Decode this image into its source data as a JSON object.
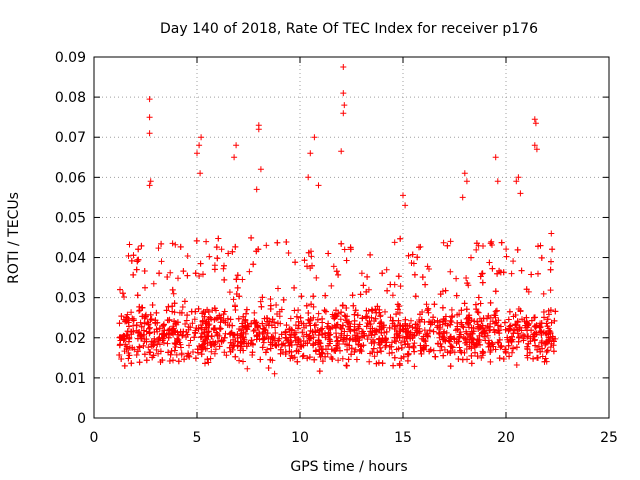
{
  "chart_data": {
    "type": "scatter",
    "title": "Day 140 of 2018, Rate Of TEC Index for receiver p176",
    "xlabel": "GPS time / hours",
    "ylabel": "ROTI / TECUs",
    "xlim": [
      0,
      25
    ],
    "ylim": [
      0,
      0.09
    ],
    "xticks": [
      0,
      5,
      10,
      15,
      20,
      25
    ],
    "yticks": [
      0,
      0.01,
      0.02,
      0.03,
      0.04,
      0.05,
      0.06,
      0.07,
      0.08,
      0.09
    ],
    "xtick_labels": [
      "0",
      "5",
      "10",
      "15",
      "20",
      "25"
    ],
    "ytick_labels": [
      "0",
      "0.01",
      "0.02",
      "0.03",
      "0.04",
      "0.05",
      "0.06",
      "0.07",
      "0.08",
      "0.09"
    ],
    "grid": true,
    "marker": "+",
    "color": "#ff0000",
    "series": [
      {
        "name": "ROTI",
        "x_range": [
          1.2,
          22.4
        ],
        "typical_range": [
          0.005,
          0.045
        ],
        "notable_points": [
          {
            "x": 2.7,
            "y": 0.0795
          },
          {
            "x": 2.7,
            "y": 0.075
          },
          {
            "x": 2.7,
            "y": 0.071
          },
          {
            "x": 2.75,
            "y": 0.059
          },
          {
            "x": 2.7,
            "y": 0.058
          },
          {
            "x": 5.1,
            "y": 0.068
          },
          {
            "x": 5.2,
            "y": 0.07
          },
          {
            "x": 5.0,
            "y": 0.066
          },
          {
            "x": 5.15,
            "y": 0.061
          },
          {
            "x": 6.9,
            "y": 0.068
          },
          {
            "x": 6.8,
            "y": 0.065
          },
          {
            "x": 8.0,
            "y": 0.073
          },
          {
            "x": 8.0,
            "y": 0.072
          },
          {
            "x": 8.1,
            "y": 0.062
          },
          {
            "x": 7.9,
            "y": 0.057
          },
          {
            "x": 10.7,
            "y": 0.07
          },
          {
            "x": 10.5,
            "y": 0.066
          },
          {
            "x": 10.4,
            "y": 0.06
          },
          {
            "x": 10.9,
            "y": 0.058
          },
          {
            "x": 12.1,
            "y": 0.0875
          },
          {
            "x": 12.1,
            "y": 0.081
          },
          {
            "x": 12.15,
            "y": 0.078
          },
          {
            "x": 12.1,
            "y": 0.076
          },
          {
            "x": 12.0,
            "y": 0.0665
          },
          {
            "x": 15.0,
            "y": 0.0555
          },
          {
            "x": 15.1,
            "y": 0.053
          },
          {
            "x": 18.0,
            "y": 0.061
          },
          {
            "x": 18.1,
            "y": 0.059
          },
          {
            "x": 17.9,
            "y": 0.055
          },
          {
            "x": 19.5,
            "y": 0.065
          },
          {
            "x": 19.6,
            "y": 0.059
          },
          {
            "x": 20.6,
            "y": 0.06
          },
          {
            "x": 20.5,
            "y": 0.059
          },
          {
            "x": 20.7,
            "y": 0.056
          },
          {
            "x": 21.4,
            "y": 0.0745
          },
          {
            "x": 21.45,
            "y": 0.0735
          },
          {
            "x": 21.4,
            "y": 0.068
          },
          {
            "x": 21.5,
            "y": 0.067
          },
          {
            "x": 22.2,
            "y": 0.046
          }
        ]
      }
    ]
  }
}
